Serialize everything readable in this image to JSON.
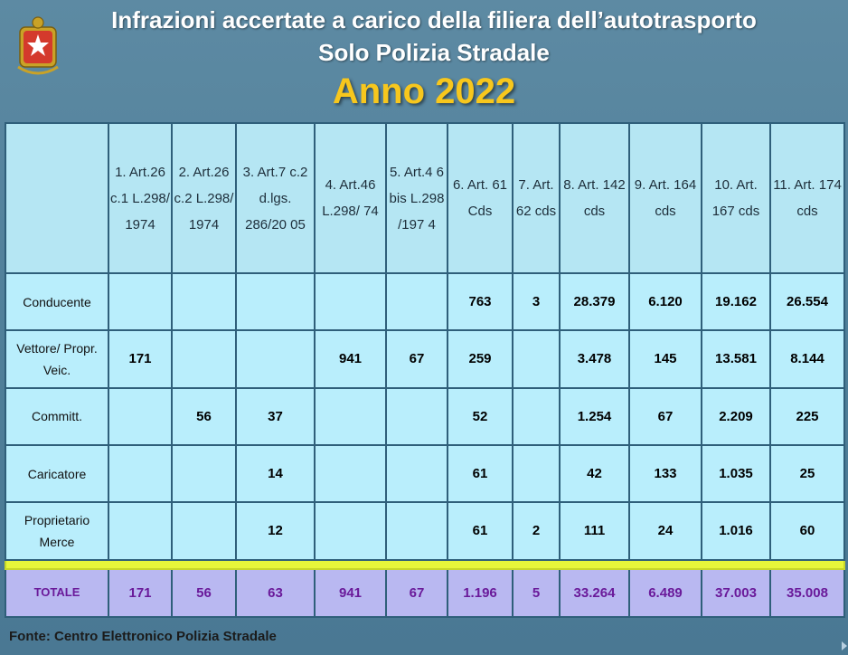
{
  "title_line1": "Infrazioni accertate a carico della filiera dell’autotrasporto",
  "title_line2": "Solo Polizia Stradale",
  "year_title": "Anno 2022",
  "logo_icon": "polizia-emblem",
  "columns": [
    "",
    "1. Art.26 c.1 L.298/ 1974",
    "2. Art.26 c.2 L.298/ 1974",
    "3. Art.7 c.2 d.lgs. 286/20 05",
    "4. Art.46 L.298/ 74",
    "5. Art.4 6 bis L.298 /197 4",
    "6. Art. 61 Cds",
    "7. Art. 62 cds",
    "8. Art. 142 cds",
    "9. Art. 164 cds",
    "10. Art. 167 cds",
    "11. Art. 174 cds"
  ],
  "rows": [
    {
      "label": "Conducente",
      "cells": [
        "",
        "",
        "",
        "",
        "",
        "763",
        "3",
        "28.379",
        "6.120",
        "19.162",
        "26.554"
      ]
    },
    {
      "label": "Vettore/ Propr. Veic.",
      "cells": [
        "171",
        "",
        "",
        "941",
        "67",
        "259",
        "",
        "3.478",
        "145",
        "13.581",
        "8.144"
      ]
    },
    {
      "label": "Committ.",
      "cells": [
        "",
        "56",
        "37",
        "",
        "",
        "52",
        "",
        "1.254",
        "67",
        "2.209",
        "225"
      ]
    },
    {
      "label": "Caricatore",
      "cells": [
        "",
        "",
        "14",
        "",
        "",
        "61",
        "",
        "42",
        "133",
        "1.035",
        "25"
      ]
    },
    {
      "label": "Proprietario Merce",
      "cells": [
        "",
        "",
        "12",
        "",
        "",
        "61",
        "2",
        "111",
        "24",
        "1.016",
        "60"
      ]
    }
  ],
  "total": {
    "label": "TOTALE",
    "cells": [
      "171",
      "56",
      "63",
      "941",
      "67",
      "1.196",
      "5",
      "33.264",
      "6.489",
      "37.003",
      "35.008"
    ]
  },
  "source": "Fonte: Centro Elettronico Polizia Stradale",
  "colors": {
    "title_text": "#ffffff",
    "year_text": "#f7c71d",
    "total_text": "#6a1a9a",
    "separator": "#e7f63a"
  }
}
